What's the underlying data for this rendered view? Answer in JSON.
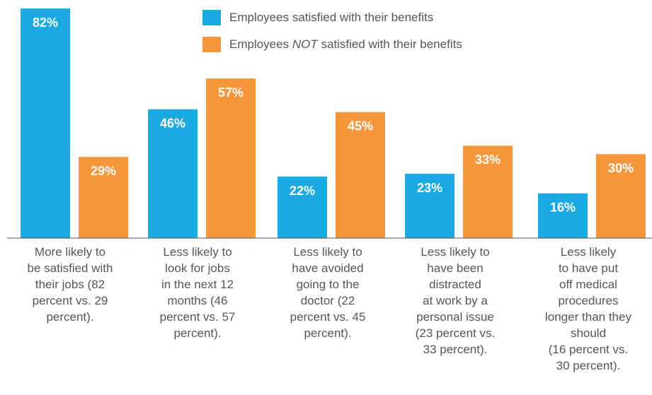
{
  "chart_data": {
    "type": "bar",
    "categories": [
      "More likely to\nbe satisfied with\ntheir jobs (82\npercent vs. 29\npercent).",
      "Less likely to\nlook for jobs\nin the next 12\nmonths (46\npercent vs. 57\npercent).",
      "Less likely to\nhave avoided\ngoing to the\ndoctor (22\npercent vs. 45\npercent).",
      "Less likely to\nhave been\ndistracted\nat work by a\npersonal issue\n(23 percent vs.\n33 percent).",
      "Less likely\nto have put\noff medical\nprocedures\nlonger than they\nshould\n(16 percent vs.\n30 percent)."
    ],
    "series": [
      {
        "name": "Employees satisfied with their benefits",
        "values": [
          82,
          46,
          22,
          23,
          16
        ],
        "labels": [
          "82%",
          "46%",
          "22%",
          "23%",
          "16%"
        ],
        "color": "#1ba9e1"
      },
      {
        "name": "Employees NOT satisfied with their benefits",
        "values": [
          29,
          57,
          45,
          33,
          30
        ],
        "labels": [
          "29%",
          "57%",
          "45%",
          "33%",
          "30%"
        ],
        "color": "#f7963a"
      }
    ],
    "legend": {
      "items": [
        {
          "before": "Employees satisfied with their benefits",
          "emph": "",
          "after": ""
        },
        {
          "before": "Employees ",
          "emph": "NOT",
          "after": " satisfied with their benefits"
        }
      ],
      "placement": "top-center"
    },
    "ylim": [
      0,
      82
    ],
    "grid": false
  }
}
